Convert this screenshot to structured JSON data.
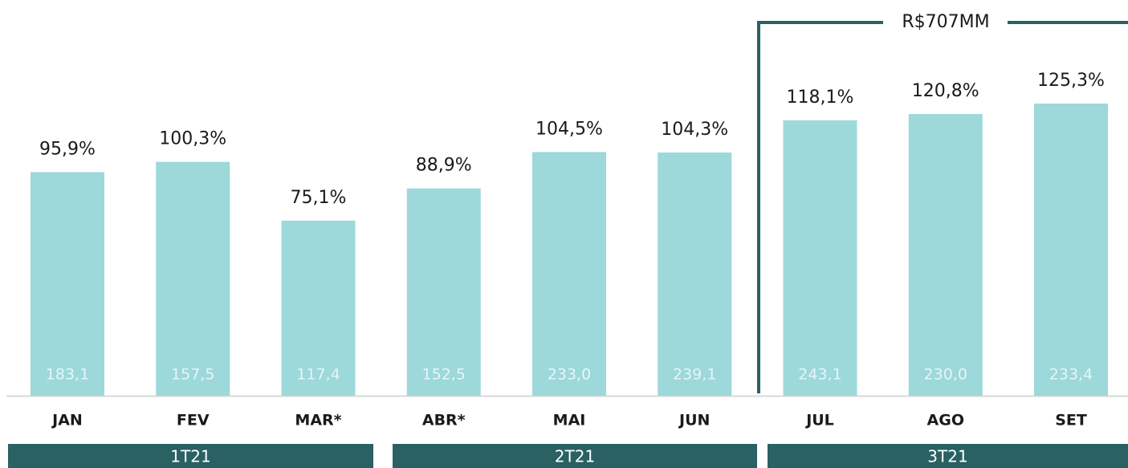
{
  "chart_data": {
    "type": "bar",
    "categories": [
      "JAN",
      "FEV",
      "MAR*",
      "ABR*",
      "MAI",
      "JUN",
      "JUL",
      "AGO",
      "SET"
    ],
    "values": [
      95.9,
      100.3,
      75.1,
      88.9,
      104.5,
      104.3,
      118.1,
      120.8,
      125.3
    ],
    "value_labels": [
      "95,9%",
      "100,3%",
      "75,1%",
      "88,9%",
      "104,5%",
      "104,3%",
      "118,1%",
      "120,8%",
      "125,3%"
    ],
    "bar_labels": [
      "183,1",
      "157,5",
      "117,4",
      "152,5",
      "233,0",
      "239,1",
      "243,1",
      "230,0",
      "233,4"
    ],
    "groups": [
      "1T21",
      "2T21",
      "3T21"
    ],
    "annotation": "R$707MM",
    "color": "#9dd8da",
    "group_color": "#2a6163"
  }
}
